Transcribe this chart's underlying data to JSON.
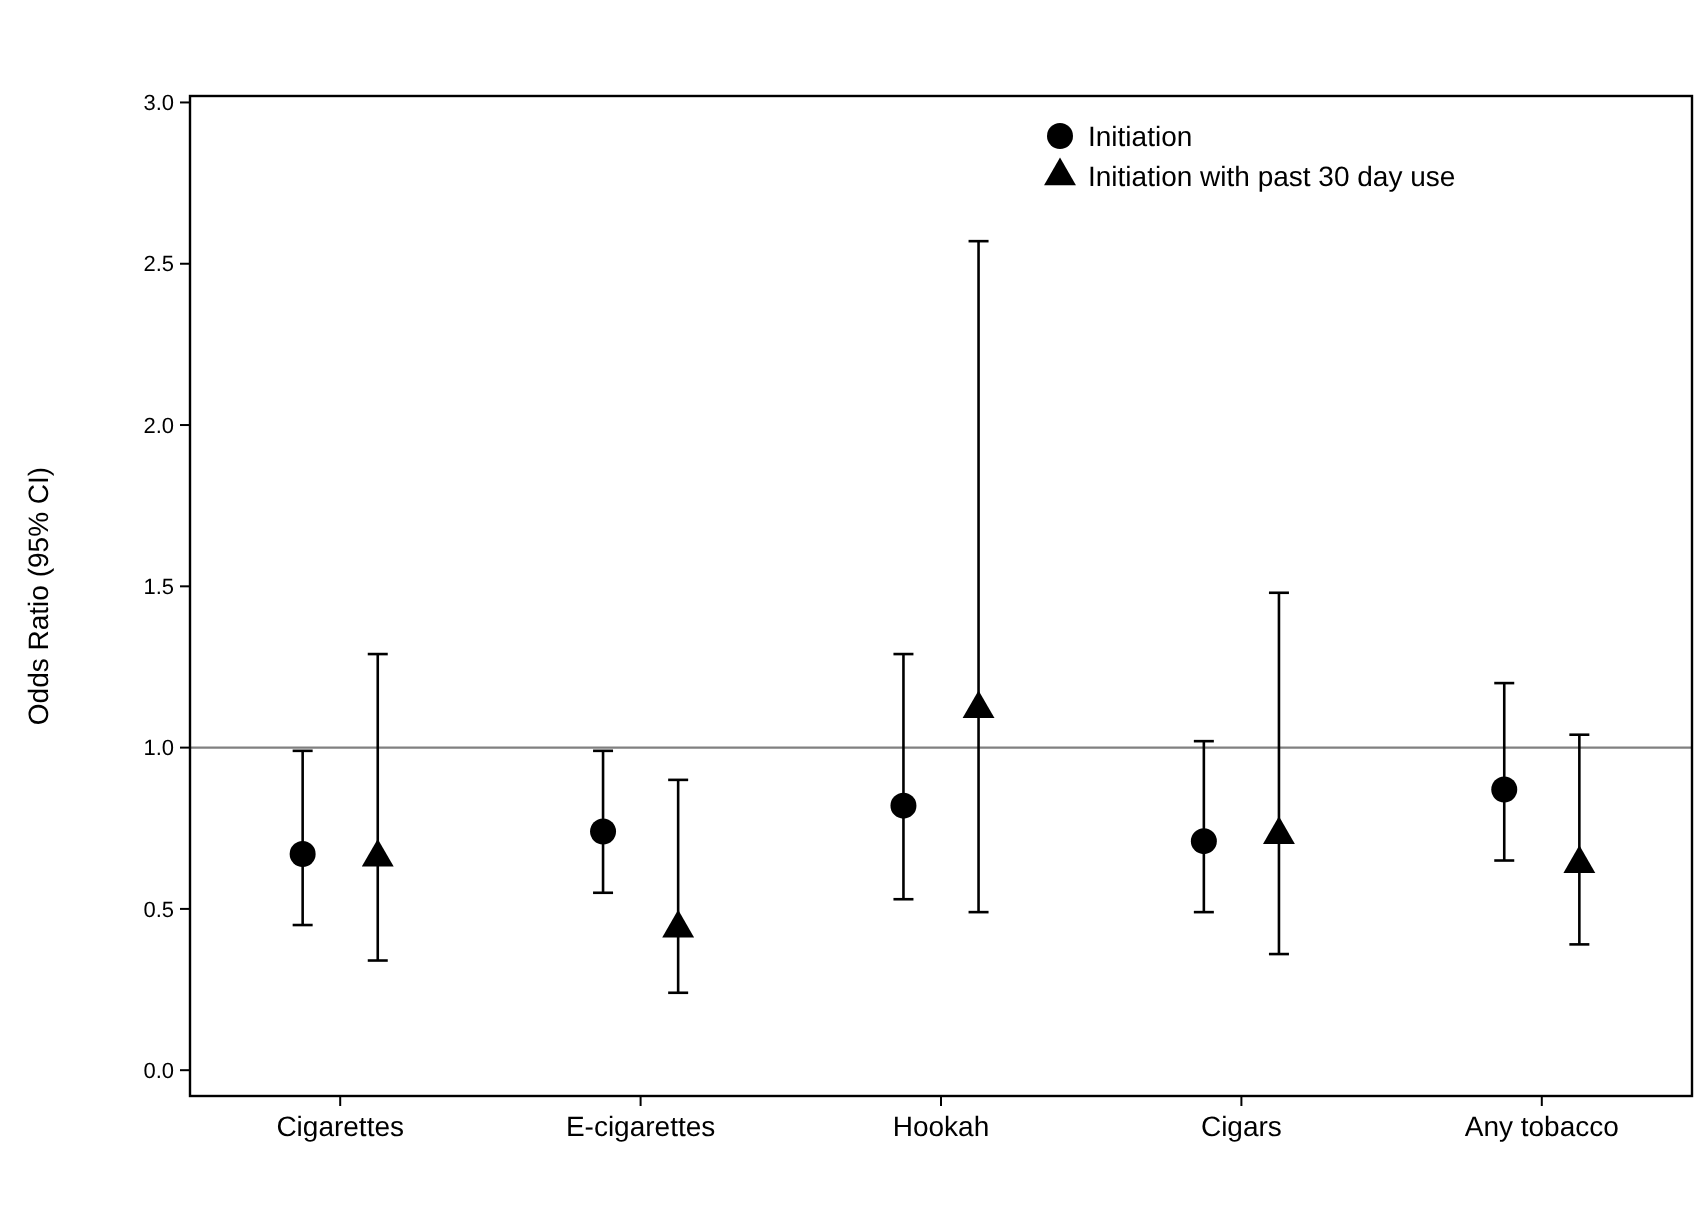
{
  "chart_data": {
    "type": "scatter",
    "ylabel": "Odds Ratio (95% CI)",
    "categories": [
      "Cigarettes",
      "E-cigarettes",
      "Hookah",
      "Cigars",
      "Any tobacco"
    ],
    "series": [
      {
        "name": "Initiation",
        "color": "#000000",
        "marker": "circle",
        "values": [
          0.67,
          0.74,
          0.82,
          0.71,
          0.87
        ],
        "errors": [
          [
            0.45,
            0.99
          ],
          [
            0.55,
            0.99
          ],
          [
            0.53,
            1.29
          ],
          [
            0.49,
            1.02
          ],
          [
            0.65,
            1.2
          ]
        ]
      },
      {
        "name": "Initiation with past 30 day use",
        "color": "#000000",
        "marker": "triangle",
        "values": [
          0.66,
          0.44,
          1.12,
          0.73,
          0.64
        ],
        "errors": [
          [
            0.34,
            1.29
          ],
          [
            0.24,
            0.9
          ],
          [
            0.49,
            2.57
          ],
          [
            0.36,
            1.48
          ],
          [
            0.39,
            1.04
          ]
        ]
      }
    ],
    "ylim": [
      -0.08,
      3.02
    ],
    "yticks": [
      {
        "value": 0,
        "label": "0.0"
      },
      {
        "value": 0.5,
        "label": "0.5"
      },
      {
        "value": 1,
        "label": "1.0"
      },
      {
        "value": 1.5,
        "label": "1.5"
      },
      {
        "value": 2,
        "label": "2.0"
      },
      {
        "value": 2.5,
        "label": "2.5"
      },
      {
        "value": 3,
        "label": "3.0"
      }
    ],
    "ref_lines": [
      {
        "axis": "y",
        "value": 1,
        "color": "#808080"
      }
    ],
    "legend": "top",
    "grid": false
  }
}
